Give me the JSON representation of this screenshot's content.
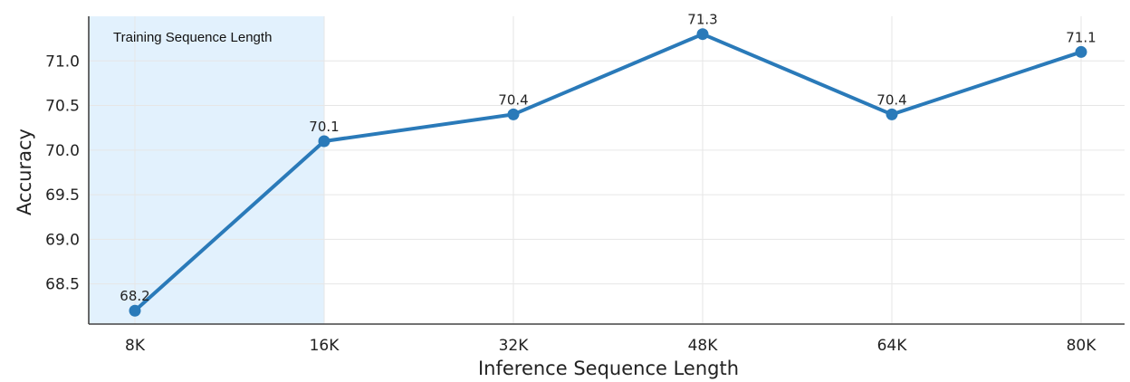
{
  "chart_data": {
    "type": "line",
    "title": "",
    "xlabel": "Inference Sequence Length",
    "ylabel": "Accuracy",
    "categories": [
      "8K",
      "16K",
      "32K",
      "48K",
      "64K",
      "80K"
    ],
    "series": [
      {
        "values": [
          68.2,
          70.1,
          70.4,
          71.3,
          70.4,
          71.1
        ]
      }
    ],
    "data_labels": [
      "68.2",
      "70.1",
      "70.4",
      "71.3",
      "70.4",
      "71.1"
    ],
    "ylim": [
      68.05,
      71.5
    ],
    "yticks": [
      68.5,
      69.0,
      69.5,
      70.0,
      70.5,
      71.0
    ],
    "ytick_labels": [
      "68.5",
      "69.0",
      "69.5",
      "70.0",
      "70.5",
      "71.0"
    ],
    "grid": true,
    "legend": "none",
    "shaded_region": {
      "label": "Training Sequence Length",
      "x_start": -0.5,
      "x_end": "16K"
    },
    "colors": {
      "line": "#2a7ab9",
      "shade": "#e2f1fd",
      "grid": "#e6e6e6",
      "axis": "#444444"
    }
  }
}
